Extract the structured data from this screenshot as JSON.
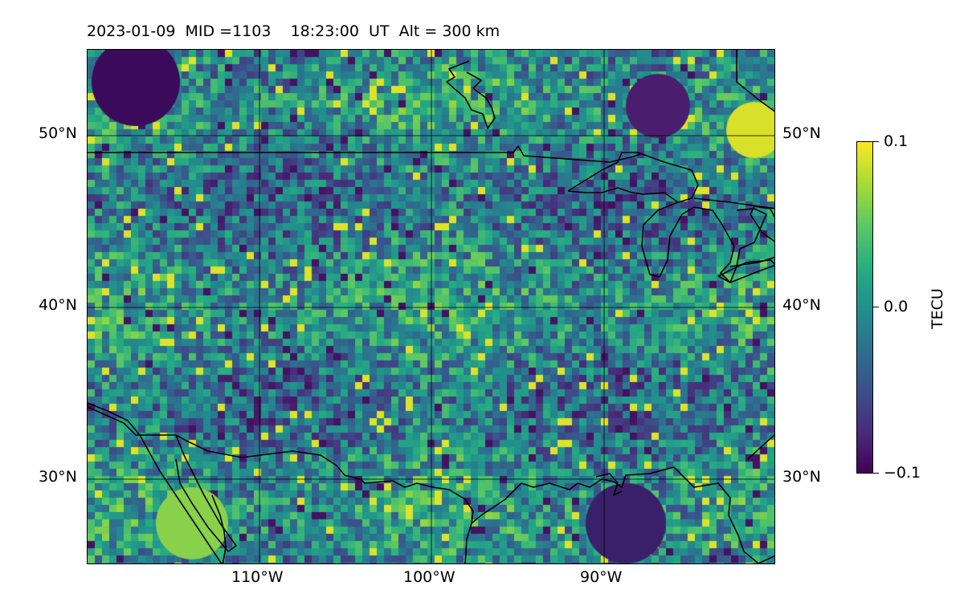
{
  "title": "2023-01-09  MID =1103    18:23:00  UT  Alt = 300 km",
  "map": {
    "lat_range": [
      25,
      55
    ],
    "lon_range": [
      -120,
      -80
    ],
    "meridians": [
      -110,
      -100,
      -90
    ],
    "parallels": [
      30,
      40,
      50
    ],
    "lon_labels": [
      "110°W",
      "100°W",
      "90°W"
    ],
    "lat_labels_left": [
      "50°N",
      "40°N",
      "30°N"
    ],
    "lat_labels_right": [
      "50°N",
      "40°N",
      "30°N"
    ]
  },
  "colorbar": {
    "label": "TECU",
    "ticks": [
      "0.1",
      "0.0",
      "−0.1"
    ],
    "range": [
      -0.1,
      0.1
    ],
    "colormap": "viridis"
  },
  "chart_data": {
    "type": "heatmap",
    "title": "2023-01-09  MID =1103    18:23:00  UT  Alt = 300 km",
    "quantity": "TECU",
    "vmin": -0.1,
    "vmax": 0.1,
    "xlim": [
      -120,
      -80
    ],
    "ylim": [
      25,
      55
    ],
    "colorbar_ticks": [
      0.1,
      0.0,
      -0.1
    ]
  }
}
